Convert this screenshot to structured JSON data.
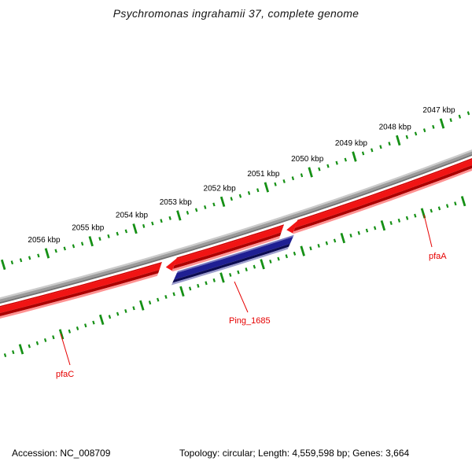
{
  "title": "Psychromonas ingrahamii 37, complete genome",
  "status_bar": {
    "accession": "Accession: NC_008709",
    "summary": "Topology: circular; Length: 4,559,598 bp; Genes: 3,664"
  },
  "colors": {
    "background": "#ffffff",
    "backbone_gray_highlight": "#cbcbcb",
    "backbone_gray_mid": "#9b9b9b",
    "backbone_gray_shadow": "#727272",
    "feature_red": {
      "top": "#cf0000",
      "mid": "#f11414",
      "bottom": "#ab0000",
      "shadow": "#ff9292"
    },
    "feature_navy": {
      "top": "#7474bd",
      "mid": "#1f1f93",
      "bottom": "#0c0c52",
      "shadow": "#9c9ccd"
    },
    "tick_green": "#159015",
    "feature_label_red": "#e60000",
    "text_black": "#000000",
    "title_color": "#141414"
  },
  "chart_data": {
    "type": "genome-map-zoomed-arc",
    "title": "Psychromonas ingrahamii 37, complete genome",
    "ruler": {
      "unit": "kbp",
      "visible_range_kbp": [
        2046.5,
        2057.4
      ],
      "major_tick_interval_kbp": 1,
      "minor_tick_interval_kbp": 0.2,
      "labeled_major_ticks_kbp": [
        2047,
        2048,
        2049,
        2050,
        2051,
        2052,
        2053,
        2054,
        2055,
        2056
      ],
      "tick_label_suffix": " kbp"
    },
    "features": [
      {
        "label": "pfaC",
        "color": "red",
        "start_kbp": 2053.67,
        "end_kbp": 2057.7,
        "arrowhead": "none",
        "track": "main",
        "clipped_left": true
      },
      {
        "label": null,
        "color": "red",
        "start_kbp": 2050.89,
        "end_kbp": 2053.53,
        "arrowhead": "left",
        "track": "main"
      },
      {
        "label": "pfaA",
        "color": "red",
        "start_kbp": 2046.3,
        "end_kbp": 2050.78,
        "arrowhead": "left",
        "track": "main",
        "clipped_right": true
      },
      {
        "label": "Ping_1685",
        "color": "navy",
        "start_kbp": 2050.68,
        "end_kbp": 2053.33,
        "arrowhead": "none",
        "track": "inner"
      }
    ],
    "feature_labels": [
      {
        "text": "pfaA"
      },
      {
        "text": "Ping_1685"
      },
      {
        "text": "pfaC"
      }
    ]
  }
}
